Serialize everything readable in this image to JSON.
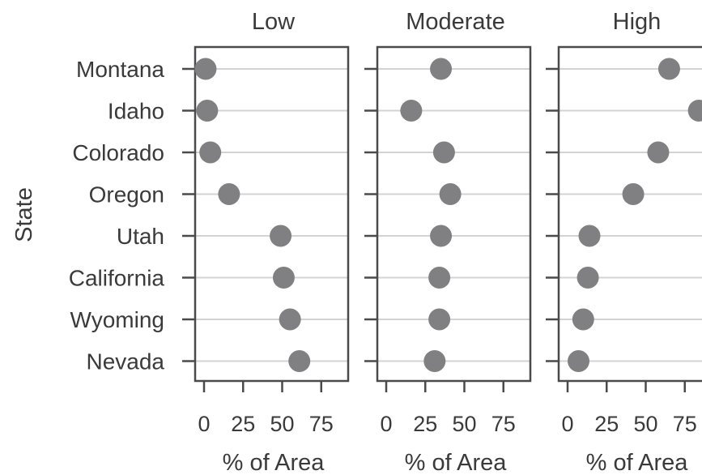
{
  "chart_data": {
    "type": "scatter",
    "ylabel": "State",
    "xlabel": "% of Area",
    "states": [
      "Montana",
      "Idaho",
      "Colorado",
      "Oregon",
      "Utah",
      "California",
      "Wyoming",
      "Nevada"
    ],
    "xticks": [
      0,
      25,
      50,
      75
    ],
    "xlim": [
      -5,
      92
    ],
    "grid": "horizontal",
    "marker_color": "#808083",
    "panels": [
      {
        "title": "Low",
        "values": [
          1,
          2,
          4,
          16,
          49,
          51,
          55,
          61
        ]
      },
      {
        "title": "Moderate",
        "values": [
          35,
          16,
          37,
          41,
          35,
          34,
          34,
          31
        ]
      },
      {
        "title": "High",
        "values": [
          65,
          84,
          58,
          42,
          14,
          13,
          10,
          7
        ]
      }
    ]
  }
}
